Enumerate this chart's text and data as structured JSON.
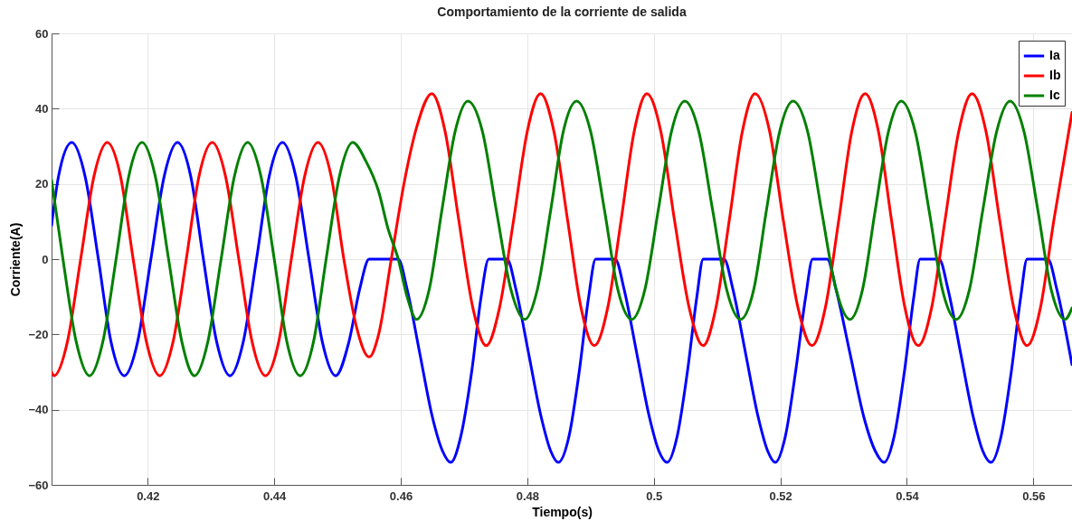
{
  "chart_data": {
    "type": "line",
    "title": "Comportamiento de la corriente de salida",
    "xlabel": "Tiempo(s)",
    "ylabel": "Corriente(A)",
    "xlim": [
      0.4048,
      0.5661
    ],
    "xticks": [
      0.42,
      0.44,
      0.46,
      0.48,
      0.5,
      0.52,
      0.54,
      0.56
    ],
    "ylim": [
      -60,
      60
    ],
    "yticks": [
      -60,
      -40,
      -20,
      0,
      20,
      40,
      60
    ],
    "grid": true,
    "legend": "top right",
    "marker": "none",
    "line_style": "solid",
    "series": [
      {
        "name": "Ia",
        "color": "#0000ff",
        "x": [
          0.4048,
          0.4059,
          0.408,
          0.4101,
          0.4122,
          0.4142,
          0.4163,
          0.4184,
          0.4205,
          0.4226,
          0.4247,
          0.4268,
          0.4288,
          0.4309,
          0.433,
          0.4351,
          0.4372,
          0.4392,
          0.4413,
          0.4434,
          0.4455,
          0.4476,
          0.4497,
          0.4518,
          0.4535,
          0.455,
          0.4596,
          0.461,
          0.463,
          0.465,
          0.4666,
          0.4679,
          0.4695,
          0.4712,
          0.4727,
          0.4739,
          0.4768,
          0.4782,
          0.4802,
          0.4822,
          0.4837,
          0.4849,
          0.4866,
          0.4882,
          0.4897,
          0.4908,
          0.4939,
          0.4953,
          0.4973,
          0.4993,
          0.5008,
          0.5021,
          0.5037,
          0.5053,
          0.5068,
          0.5078,
          0.5111,
          0.5125,
          0.5145,
          0.5165,
          0.518,
          0.5192,
          0.5208,
          0.5224,
          0.524,
          0.5251,
          0.5274,
          0.5288,
          0.531,
          0.5332,
          0.535,
          0.5364,
          0.538,
          0.5396,
          0.5411,
          0.5421,
          0.5451,
          0.5465,
          0.5485,
          0.5505,
          0.552,
          0.5533,
          0.5549,
          0.5565,
          0.558,
          0.559,
          0.5623,
          0.5637,
          0.5661
        ],
        "values": [
          9,
          22,
          31,
          22,
          0,
          -22,
          -31,
          -22,
          0,
          22,
          31,
          22,
          0,
          -22,
          -31,
          -22,
          0,
          22,
          31,
          22,
          0,
          -22,
          -31,
          -22,
          -8,
          0,
          0,
          -8,
          -25,
          -42,
          -51,
          -54,
          -47,
          -30,
          -10,
          0,
          0,
          -8,
          -25,
          -42,
          -51,
          -54,
          -47,
          -30,
          -10,
          0,
          0,
          -8,
          -25,
          -42,
          -51,
          -54,
          -47,
          -30,
          -10,
          0,
          0,
          -8,
          -25,
          -42,
          -51,
          -54,
          -47,
          -30,
          -10,
          0,
          0,
          -8,
          -25,
          -42,
          -51,
          -54,
          -47,
          -30,
          -10,
          0,
          0,
          -8,
          -25,
          -42,
          -51,
          -54,
          -47,
          -30,
          -10,
          0,
          0,
          -8,
          -28
        ]
      },
      {
        "name": "Ib",
        "color": "#ff0000",
        "x": [
          0.4048,
          0.4052,
          0.4073,
          0.4094,
          0.4115,
          0.4136,
          0.4157,
          0.4177,
          0.4198,
          0.4219,
          0.424,
          0.4261,
          0.4281,
          0.4302,
          0.4323,
          0.4344,
          0.4365,
          0.4386,
          0.4407,
          0.4427,
          0.4448,
          0.4469,
          0.449,
          0.451,
          0.453,
          0.455,
          0.4565,
          0.4585,
          0.4605,
          0.4625,
          0.4649,
          0.467,
          0.4692,
          0.4714,
          0.4735,
          0.4756,
          0.4778,
          0.48,
          0.4821,
          0.4842,
          0.4864,
          0.4885,
          0.4906,
          0.4927,
          0.4948,
          0.4969,
          0.4989,
          0.5011,
          0.5033,
          0.5056,
          0.5078,
          0.5098,
          0.5119,
          0.514,
          0.516,
          0.5183,
          0.5205,
          0.5228,
          0.525,
          0.5271,
          0.5292,
          0.5313,
          0.5334,
          0.5355,
          0.5376,
          0.5397,
          0.5418,
          0.5439,
          0.546,
          0.5482,
          0.5503,
          0.5525,
          0.5547,
          0.5569,
          0.559,
          0.5611,
          0.5632,
          0.5661
        ],
        "values": [
          -30,
          -31,
          -22,
          0,
          22,
          31,
          22,
          0,
          -22,
          -31,
          -22,
          0,
          22,
          31,
          22,
          0,
          -22,
          -31,
          -22,
          0,
          22,
          31,
          22,
          0,
          -18,
          -26,
          -20,
          0,
          20,
          35,
          44,
          34,
          10,
          -13,
          -23,
          -13,
          10,
          34,
          44,
          34,
          10,
          -13,
          -23,
          -13,
          10,
          34,
          44,
          34,
          10,
          -13,
          -23,
          -13,
          10,
          34,
          44,
          34,
          10,
          -13,
          -23,
          -13,
          10,
          34,
          44,
          34,
          10,
          -13,
          -23,
          -13,
          10,
          34,
          44,
          34,
          10,
          -13,
          -23,
          -13,
          10,
          39
        ]
      },
      {
        "name": "Ic",
        "color": "#008000",
        "x": [
          0.4048,
          0.4066,
          0.4087,
          0.4108,
          0.4129,
          0.415,
          0.417,
          0.4191,
          0.4212,
          0.4233,
          0.4254,
          0.4274,
          0.4295,
          0.4316,
          0.4337,
          0.4358,
          0.4379,
          0.44,
          0.442,
          0.4441,
          0.4462,
          0.4482,
          0.4503,
          0.4524,
          0.4545,
          0.4565,
          0.458,
          0.4596,
          0.461,
          0.4625,
          0.4645,
          0.4665,
          0.4686,
          0.4706,
          0.4729,
          0.4751,
          0.4774,
          0.4796,
          0.4816,
          0.4837,
          0.4857,
          0.4878,
          0.49,
          0.4922,
          0.4943,
          0.4965,
          0.4986,
          0.5007,
          0.5028,
          0.5049,
          0.5071,
          0.5093,
          0.5115,
          0.5137,
          0.5158,
          0.5178,
          0.5199,
          0.522,
          0.5243,
          0.5265,
          0.5288,
          0.531,
          0.533,
          0.535,
          0.5371,
          0.5391,
          0.5413,
          0.5435,
          0.5456,
          0.5478,
          0.5499,
          0.552,
          0.5542,
          0.5563,
          0.5585,
          0.5607,
          0.5628,
          0.565,
          0.5661
        ],
        "values": [
          21,
          0,
          -22,
          -31,
          -22,
          0,
          22,
          31,
          22,
          0,
          -22,
          -31,
          -22,
          0,
          22,
          31,
          22,
          0,
          -22,
          -31,
          -22,
          0,
          22,
          31,
          26,
          18,
          8,
          0,
          -10,
          -16,
          -8,
          13,
          34,
          42,
          34,
          13,
          -8,
          -16,
          -8,
          13,
          34,
          42,
          34,
          13,
          -8,
          -16,
          -8,
          13,
          34,
          42,
          34,
          13,
          -8,
          -16,
          -8,
          13,
          34,
          42,
          34,
          13,
          -8,
          -16,
          -8,
          13,
          34,
          42,
          34,
          13,
          -8,
          -16,
          -8,
          13,
          34,
          42,
          34,
          13,
          -8,
          -16,
          -13
        ]
      }
    ]
  }
}
